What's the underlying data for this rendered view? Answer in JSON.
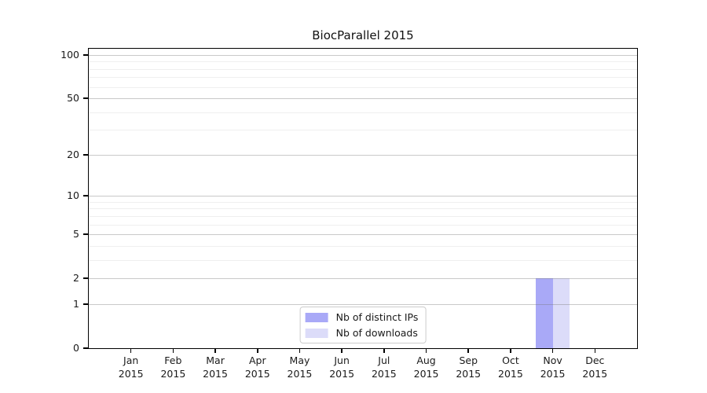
{
  "chart_data": {
    "type": "bar",
    "title": "BiocParallel 2015",
    "categories": [
      "Jan",
      "Feb",
      "Mar",
      "Apr",
      "May",
      "Jun",
      "Jul",
      "Aug",
      "Sep",
      "Oct",
      "Nov",
      "Dec"
    ],
    "category_year_line": "2015",
    "series": [
      {
        "name": "Nb of distinct IPs",
        "color": "#a9a9f7",
        "values": [
          0,
          0,
          0,
          0,
          0,
          0,
          0,
          0,
          0,
          0,
          2,
          0
        ]
      },
      {
        "name": "Nb of downloads",
        "color": "#dcdcf9",
        "values": [
          0,
          0,
          0,
          0,
          0,
          0,
          0,
          0,
          0,
          0,
          2,
          0
        ]
      }
    ],
    "xlabel": "",
    "ylabel": "",
    "y_axis": {
      "scale": "log10(1+x)",
      "tick_values": [
        0,
        1,
        2,
        5,
        10,
        20,
        50,
        100
      ],
      "tick_labels": [
        "0",
        "1",
        "2",
        "5",
        "10",
        "20",
        "50",
        "100"
      ],
      "minor_gridline_values": [
        3,
        4,
        6,
        7,
        8,
        9,
        30,
        40,
        60,
        70,
        80,
        90
      ],
      "range": [
        0,
        111
      ]
    },
    "legend": {
      "position": "lower center",
      "entries": [
        "Nb of distinct IPs",
        "Nb of downloads"
      ]
    },
    "grid": "horizontal major+minor, drawn over bars",
    "colors": {
      "background": "#ffffff",
      "axis": "#000000",
      "grid_major": "rgba(120,120,120,0.40)",
      "grid_minor": "rgba(120,120,120,0.12)",
      "text": "#1a1a1a",
      "bar_distinct_ips": "#a9a9f7",
      "bar_downloads": "#dcdcf9"
    }
  }
}
